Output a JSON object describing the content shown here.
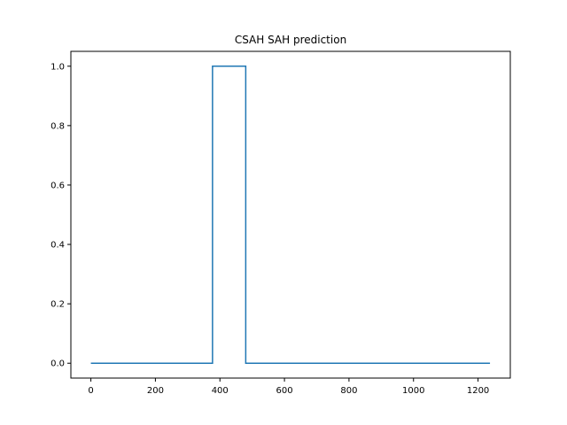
{
  "chart_data": {
    "type": "line",
    "title": "CSAH SAH prediction",
    "xlabel": "",
    "ylabel": "",
    "xlim": [
      -62,
      1300
    ],
    "ylim": [
      -0.05,
      1.05
    ],
    "x_ticks": [
      0,
      200,
      400,
      600,
      800,
      1000,
      1200
    ],
    "x_tick_labels": [
      "0",
      "200",
      "400",
      "600",
      "800",
      "1000",
      "1200"
    ],
    "y_ticks": [
      0.0,
      0.2,
      0.4,
      0.6,
      0.8,
      1.0
    ],
    "y_tick_labels": [
      "0.0",
      "0.2",
      "0.4",
      "0.6",
      "0.8",
      "1.0"
    ],
    "grid": false,
    "series": [
      {
        "color": "#1f77b4",
        "x": [
          0,
          377,
          377,
          480,
          480,
          1237
        ],
        "y": [
          0,
          0,
          1,
          1,
          0,
          0
        ]
      }
    ]
  }
}
